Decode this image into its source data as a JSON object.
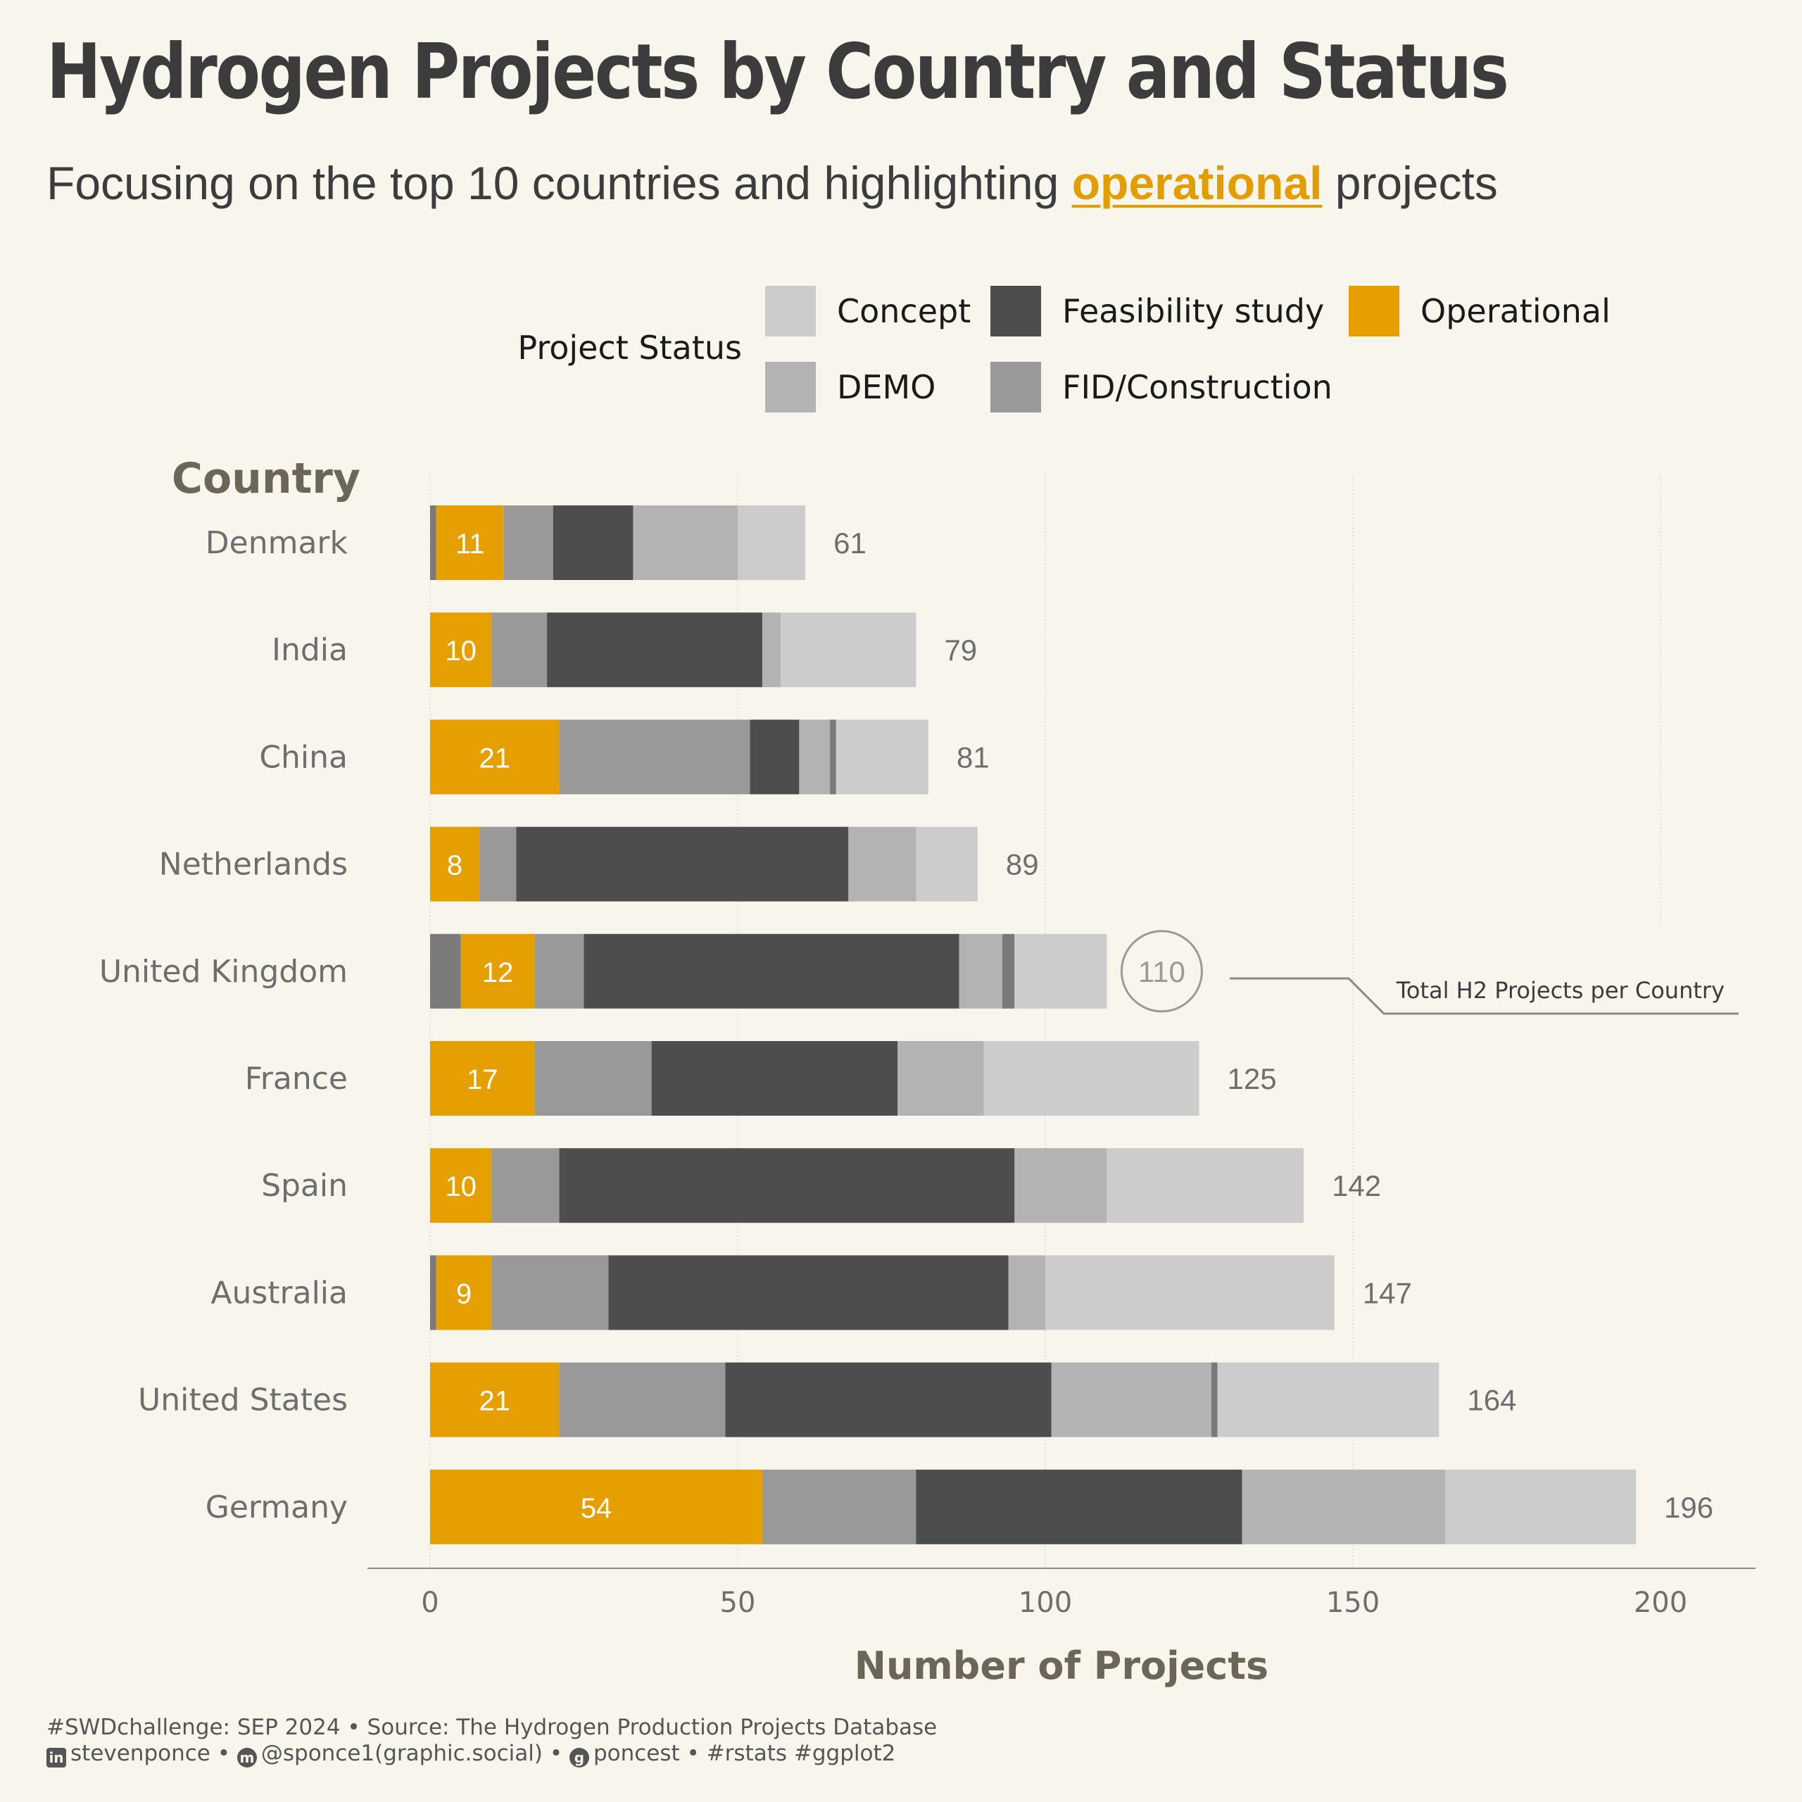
{
  "title": "Hydrogen Projects by Country and Status",
  "subtitle": {
    "before": "Focusing on the top 10 countries and highlighting ",
    "highlight": "operational",
    "after": " projects"
  },
  "legend": {
    "title": "Project Status",
    "items": [
      {
        "label": "Concept",
        "color": "#cccccc"
      },
      {
        "label": "Feasibility study",
        "color": "#4d4d4d"
      },
      {
        "label": "Operational",
        "color": "#e69f00"
      },
      {
        "label": "DEMO",
        "color": "#b3b3b3"
      },
      {
        "label": "FID/Construction",
        "color": "#999999"
      }
    ]
  },
  "colors": {
    "operational": "#e69f00",
    "fid_construction": "#999999",
    "feasibility": "#4d4d4d",
    "demo": "#b3b3b3",
    "concept": "#cccccc",
    "other": "#7a7a7a",
    "background": "#f8f6ec"
  },
  "annotation": {
    "highlight_total": "110",
    "label": "Total H2 Projects per Country"
  },
  "chart_data": {
    "type": "bar",
    "orientation": "horizontal",
    "stacked": true,
    "ylabel": "Country",
    "xlabel": "Number of Projects",
    "xlim": [
      -10,
      214
    ],
    "xticks": [
      0,
      50,
      100,
      150,
      200
    ],
    "grid": "vertical major",
    "categories": [
      "Denmark",
      "India",
      "China",
      "Netherlands",
      "United Kingdom",
      "France",
      "Spain",
      "Australia",
      "United States",
      "Germany"
    ],
    "series": [
      {
        "name": "",
        "color": "#7a7a7a",
        "values": [
          1,
          0,
          0,
          0,
          5,
          0,
          0,
          1,
          0,
          0
        ]
      },
      {
        "name": "Operational",
        "color": "#e69f00",
        "values": [
          11,
          10,
          21,
          8,
          12,
          17,
          10,
          9,
          21,
          54
        ]
      },
      {
        "name": "FID/Construction",
        "color": "#999999",
        "values": [
          8,
          9,
          31,
          6,
          8,
          19,
          11,
          19,
          27,
          25
        ]
      },
      {
        "name": "Feasibility study",
        "color": "#4d4d4d",
        "values": [
          13,
          35,
          8,
          54,
          61,
          40,
          74,
          65,
          53,
          53
        ]
      },
      {
        "name": "DEMO",
        "color": "#b3b3b3",
        "values": [
          17,
          3,
          5,
          11,
          7,
          14,
          15,
          6,
          26,
          33
        ]
      },
      {
        "name": "",
        "color": "#7a7a7a",
        "values": [
          0,
          0,
          1,
          0,
          2,
          0,
          0,
          0,
          1,
          0
        ]
      },
      {
        "name": "Concept",
        "color": "#cccccc",
        "values": [
          11,
          22,
          15,
          10,
          15,
          35,
          32,
          47,
          36,
          31
        ]
      }
    ],
    "totals": [
      61,
      79,
      81,
      89,
      110,
      125,
      142,
      147,
      164,
      196
    ]
  },
  "caption": {
    "line1": "#SWDchallenge: SEP 2024 • Source: The Hydrogen Production Projects Database",
    "linkedin": "stevenponce",
    "mastodon": "@sponce1(graphic.social)",
    "github": "poncest",
    "tags": "#rstats #ggplot2",
    "sep": " • "
  }
}
